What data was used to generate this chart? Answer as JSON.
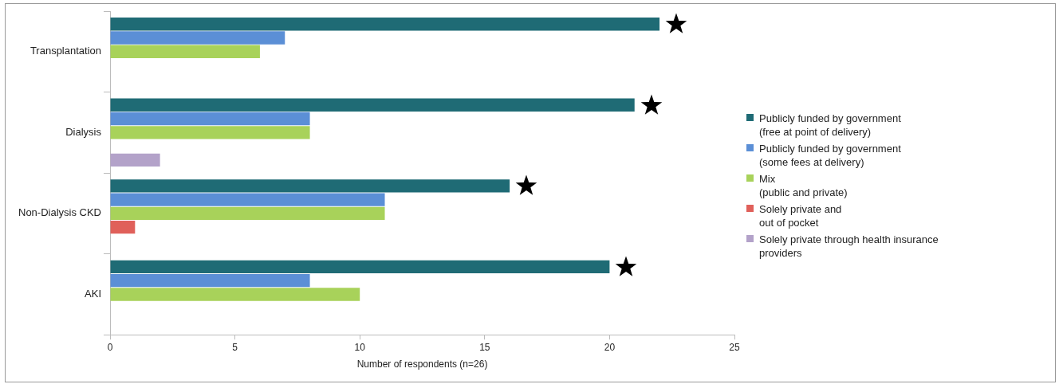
{
  "chart_data": {
    "type": "bar",
    "orientation": "horizontal",
    "xlabel": "Number of respondents (n=26)",
    "categories": [
      "Transplantation",
      "Dialysis",
      "Non-Dialysis CKD",
      "AKI"
    ],
    "series": [
      {
        "name": "Publicly funded by government\n(free at point of delivery)",
        "color": "#1f6b75",
        "values": [
          22,
          21,
          16,
          20
        ]
      },
      {
        "name": "Publicly funded by government\n(some fees at delivery)",
        "color": "#5b8fd6",
        "values": [
          7,
          8,
          11,
          8
        ]
      },
      {
        "name": "Mix\n(public and private)",
        "color": "#a8d25a",
        "values": [
          6,
          8,
          11,
          10
        ]
      },
      {
        "name": "Solely private and\nout of pocket",
        "color": "#e0605a",
        "values": [
          0,
          0,
          1,
          0
        ]
      },
      {
        "name": "Solely private through health insurance\nproviders",
        "color": "#b3a2c9",
        "values": [
          0,
          2,
          0,
          0
        ]
      }
    ],
    "xlim": [
      0,
      25
    ],
    "xticks": [
      0,
      5,
      10,
      15,
      20,
      25
    ],
    "legend": "right"
  }
}
